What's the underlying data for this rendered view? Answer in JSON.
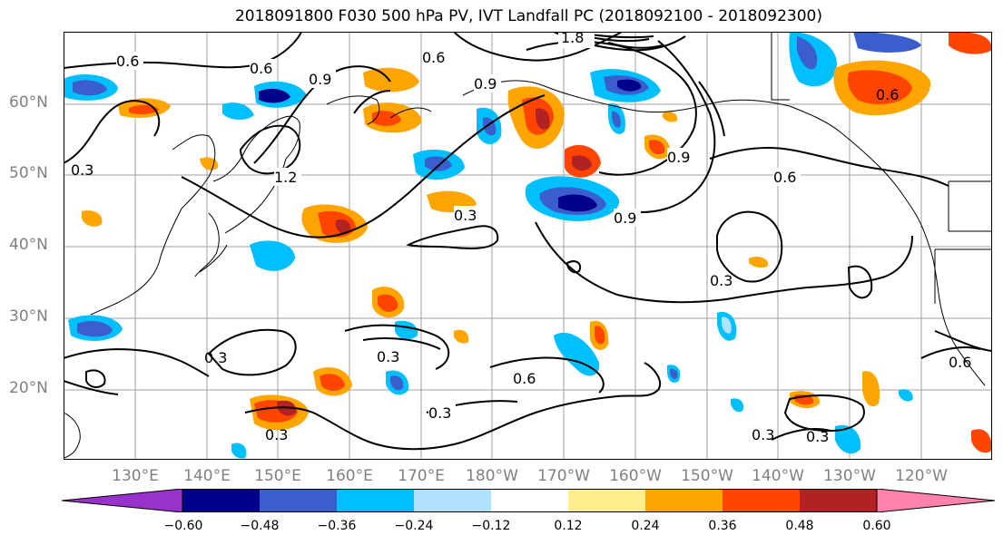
{
  "title": "2018091800 F030 500 hPa PV, IVT Landfall PC (2018092100 - 2018092300)",
  "latitude_labels": [
    "60°N",
    "50°N",
    "40°N",
    "30°N",
    "20°N"
  ],
  "longitude_labels": [
    "130°E",
    "140°E",
    "150°E",
    "160°E",
    "170°E",
    "180°W",
    "170°W",
    "160°W",
    "150°W",
    "140°W",
    "130°W",
    "120°W"
  ],
  "contour_labels": [
    "0.6",
    "0.6",
    "0.9",
    "0.9",
    "1.2",
    "0.3",
    "0.3",
    "0.9",
    "0.6",
    "0.9",
    "0.6",
    "0.3",
    "0.3",
    "0.6",
    "0.3",
    "0.3",
    "0.3",
    "0.6",
    "0.3",
    "0.3",
    "1.8",
    "0.6"
  ],
  "colorbar": {
    "ticks": [
      "−0.60",
      "−0.48",
      "−0.36",
      "−0.24",
      "−0.12",
      "0.12",
      "0.24",
      "0.36",
      "0.48",
      "0.60"
    ],
    "colors": [
      "#9932cc",
      "#00008b",
      "#3a5fcd",
      "#00bfff",
      "#b0e2ff",
      "#ffffff",
      "#ffec8b",
      "#ffa500",
      "#ff4500",
      "#b22222",
      "#ff82ab"
    ]
  }
}
